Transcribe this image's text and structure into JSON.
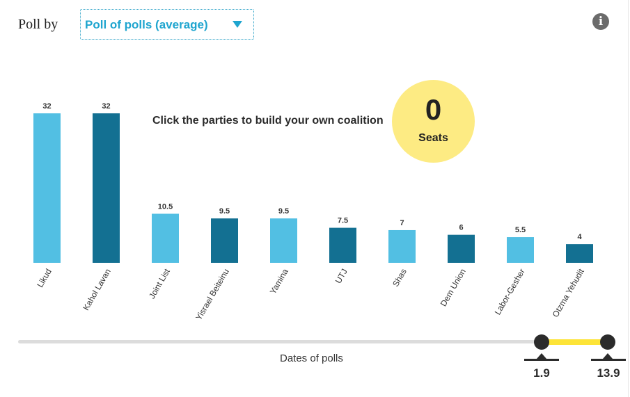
{
  "header": {
    "poll_by_label": "Poll by",
    "poll_select_value": "Poll of polls (average)",
    "info_icon": "info-icon"
  },
  "instruction": "Click the parties to build your own coalition",
  "seats": {
    "value": "0",
    "label": "Seats"
  },
  "colors": {
    "light": "#52bfe3",
    "dark": "#137092",
    "seats_bg": "#fdeb83",
    "range": "#fde438"
  },
  "chart_data": {
    "type": "bar",
    "title": "",
    "xlabel": "",
    "ylabel": "",
    "categories": [
      "Likud",
      "Kahol Lavan",
      "Joint List",
      "Yisrael Beiteinu",
      "Yamina",
      "UTJ",
      "Shas",
      "Dem Union",
      "Labor-Gesher",
      "Otzma Yehudit"
    ],
    "values": [
      32,
      32,
      10.5,
      9.5,
      9.5,
      7.5,
      7,
      6,
      5.5,
      4
    ],
    "value_labels": [
      "32",
      "32",
      "10.5",
      "9.5",
      "9.5",
      "7.5",
      "7",
      "6",
      "5.5",
      "4"
    ],
    "ylim": [
      0,
      32
    ],
    "grid": false,
    "legend": "none"
  },
  "slider": {
    "label": "Dates of polls",
    "start_label": "1.9",
    "end_label": "13.9"
  }
}
